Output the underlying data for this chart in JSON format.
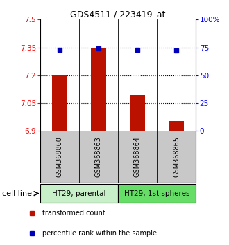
{
  "title": "GDS4511 / 223419_at",
  "samples": [
    "GSM368860",
    "GSM368863",
    "GSM368864",
    "GSM368865"
  ],
  "red_values": [
    7.205,
    7.345,
    7.095,
    6.955
  ],
  "blue_values_pct": [
    73,
    74,
    73,
    72
  ],
  "ylim_left": [
    6.9,
    7.5
  ],
  "ylim_right": [
    0,
    100
  ],
  "yticks_left": [
    6.9,
    7.05,
    7.2,
    7.35,
    7.5
  ],
  "yticks_right": [
    0,
    25,
    50,
    75,
    100
  ],
  "ytick_labels_left": [
    "6.9",
    "7.05",
    "7.2",
    "7.35",
    "7.5"
  ],
  "ytick_labels_right": [
    "0",
    "25",
    "50",
    "75",
    "100%"
  ],
  "hlines": [
    7.05,
    7.2,
    7.35
  ],
  "cell_line_groups": [
    {
      "label": "HT29, parental",
      "color": "#c8f0c8"
    },
    {
      "label": "HT29, 1st spheres",
      "color": "#66dd66"
    }
  ],
  "cell_line_label": "cell line",
  "legend_red": "transformed count",
  "legend_blue": "percentile rank within the sample",
  "bar_color": "#bb1100",
  "dot_color": "#0000bb",
  "bar_bottom": 6.9,
  "background_color": "#ffffff",
  "sample_box_color": "#c8c8c8"
}
